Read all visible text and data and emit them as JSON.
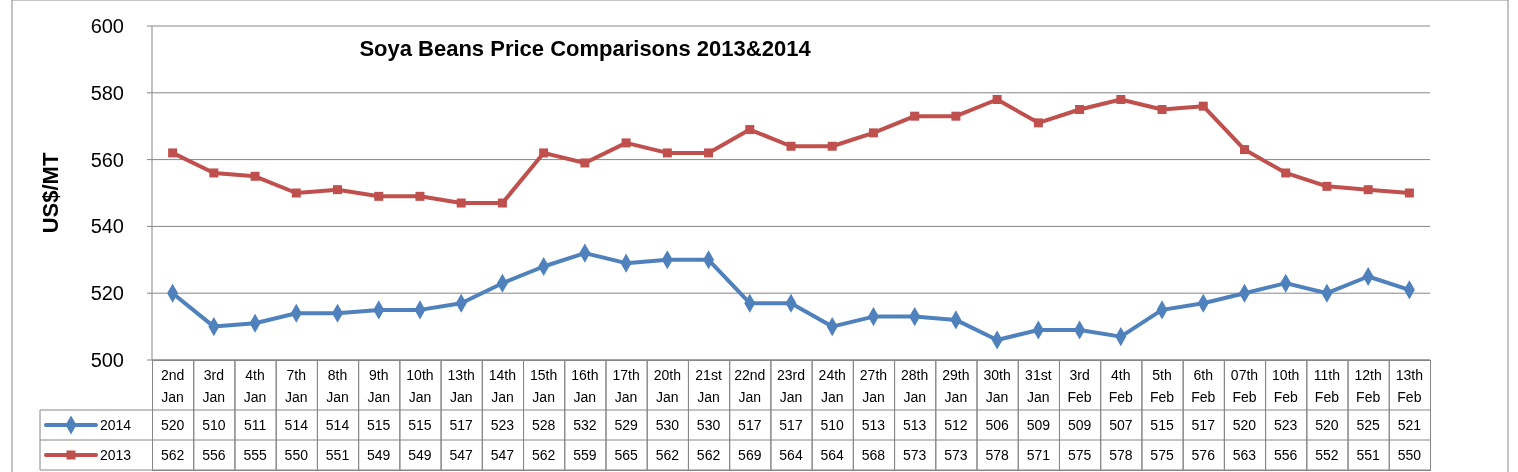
{
  "chart_data": {
    "type": "line",
    "title": "Soya Beans Price Comparisons 2013&2014",
    "ylabel": "US$/MT",
    "categories": [
      "2nd Jan",
      "3rd Jan",
      "4th Jan",
      "7th Jan",
      "8th Jan",
      "9th Jan",
      "10th Jan",
      "13th Jan",
      "14th Jan",
      "15th Jan",
      "16th Jan",
      "17th Jan",
      "20th Jan",
      "21st Jan",
      "22nd Jan",
      "23rd Jan",
      "24th Jan",
      "27th Jan",
      "28th Jan",
      "29th Jan",
      "30th Jan",
      "31st Jan",
      "3rd Feb",
      "4th Feb",
      "5th Feb",
      "6th Feb",
      "07th Feb",
      "10th Feb",
      "11th Feb",
      "12th Feb",
      "13th Feb"
    ],
    "series": [
      {
        "name": "2014",
        "color": "#4f81bd",
        "marker": "diamond",
        "values": [
          520,
          510,
          511,
          514,
          514,
          515,
          515,
          517,
          523,
          528,
          532,
          529,
          530,
          530,
          517,
          517,
          510,
          513,
          513,
          512,
          506,
          509,
          509,
          507,
          515,
          517,
          520,
          523,
          520,
          525,
          521
        ]
      },
      {
        "name": "2013",
        "color": "#c0504d",
        "marker": "square",
        "values": [
          562,
          556,
          555,
          550,
          551,
          549,
          549,
          547,
          547,
          562,
          559,
          565,
          562,
          562,
          569,
          564,
          564,
          568,
          573,
          573,
          578,
          571,
          575,
          578,
          575,
          576,
          563,
          556,
          552,
          551,
          550
        ]
      }
    ],
    "ylim": [
      500,
      600
    ],
    "yticks": [
      500,
      520,
      540,
      560,
      580,
      600
    ],
    "grid": "y",
    "legend": "bottom left",
    "data_labels": true,
    "line_style": "solid"
  }
}
